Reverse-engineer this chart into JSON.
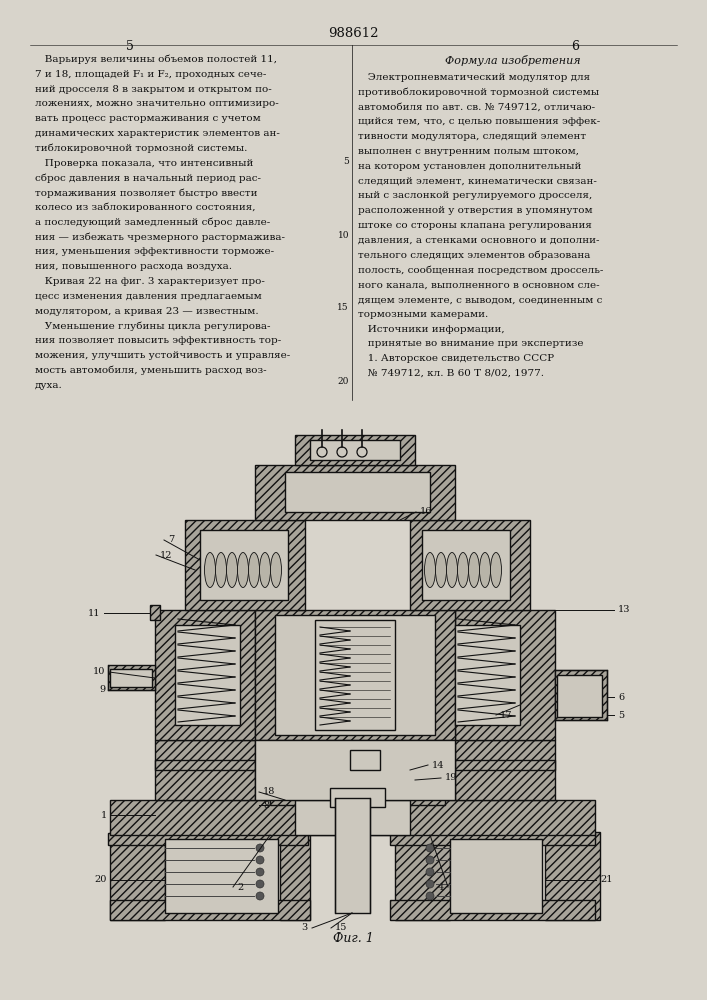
{
  "bg_color": "#d8d4cb",
  "text_color": "#111111",
  "page_number": "988612",
  "col_left_num": "5",
  "col_right_num": "6",
  "fig_caption": "Фиг. 1",
  "right_header": "Формула изобретения",
  "hatch_fc": "#a8a49a",
  "line_color": "#111111",
  "white_fc": "#ccc8be",
  "left_col_lines": [
    "   Варьируя величины объемов полостей 11,",
    "7 и 18, площадей F₁ и F₂, проходных сече-",
    "ний дросселя 8 в закрытом и открытом по-",
    "ложениях, можно значительно оптимизиро-",
    "вать процесс растормаживания с учетом",
    "динамических характеристик элементов ан-",
    "тиблокировочной тормозной системы.",
    "   Проверка показала, что интенсивный",
    "сброс давления в начальный период рас-",
    "тормаживания позволяет быстро ввести",
    "колесо из заблокированного состояния,",
    "а последующий замедленный сброс давле-",
    "ния — избежать чрезмерного растормажива-",
    "ния, уменьшения эффективности торможе-",
    "ния, повышенного расхода воздуха.",
    "   Кривая 22 на фиг. 3 характеризует про-",
    "цесс изменения давления предлагаемым",
    "модулятором, а кривая 23 — известным.",
    "   Уменьшение глубины цикла регулирова-",
    "ния позволяет повысить эффективность тор-",
    "можения, улучшить устойчивость и управляе-",
    "мость автомобиля, уменьшить расход воз-",
    "духа."
  ],
  "right_col_lines": [
    "   Электропневматический модулятор для",
    "противоблокировочной тормозной системы",
    "автомобиля по авт. св. № 749712, отличаю-",
    "щийся тем, что, с целью повышения эффек-",
    "тивности модулятора, следящий элемент",
    "выполнен с внутренним полым штоком,",
    "на котором установлен дополнительный",
    "следящий элемент, кинематически связан-",
    "ный с заслонкой регулируемого дросселя,",
    "расположенной у отверстия в упомянутом",
    "штоке со стороны клапана регулирования",
    "давления, а стенками основного и дополни-",
    "тельного следящих элементов образована",
    "полость, сообщенная посредством дроссель-",
    "ного канала, выполненного в основном сле-",
    "дящем элементе, с выводом, соединенным с",
    "тормозными камерами.",
    "   Источники информации,",
    "   принятые во внимание при экспертизе",
    "   1. Авторское свидетельство СССР",
    "   № 749712, кл. В 60 Т 8/02, 1977."
  ]
}
